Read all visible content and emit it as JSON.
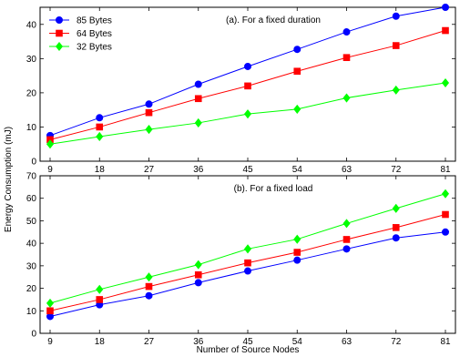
{
  "figure": {
    "shared_ylabel": "Energy Consumption (mJ)",
    "shared_xlabel": "Number of Source Nodes"
  },
  "chart_data": [
    {
      "type": "line",
      "title": "(a). For a fixed duration",
      "xlabel": "",
      "ylabel": "Energy Consumption (mJ)",
      "x": [
        9,
        18,
        27,
        36,
        45,
        54,
        63,
        72,
        81
      ],
      "xlim": [
        9,
        81
      ],
      "ylim": [
        0,
        45
      ],
      "yticks": [
        0,
        10,
        20,
        30,
        40
      ],
      "grid": false,
      "legend_position": "top-left",
      "series": [
        {
          "name": "85 Bytes",
          "color": "#0000ff",
          "marker": "circle",
          "values": [
            7.5,
            12.7,
            16.7,
            22.5,
            27.7,
            32.7,
            37.8,
            42.4,
            45.0
          ]
        },
        {
          "name": "64 Bytes",
          "color": "#ff0000",
          "marker": "square",
          "values": [
            6.3,
            10.0,
            14.2,
            18.3,
            22.0,
            26.3,
            30.3,
            33.8,
            38.2
          ]
        },
        {
          "name": "32 Bytes",
          "color": "#00ff00",
          "marker": "diamond",
          "values": [
            5.0,
            7.2,
            9.3,
            11.2,
            13.8,
            15.2,
            18.5,
            20.8,
            22.9
          ]
        }
      ]
    },
    {
      "type": "line",
      "title": "(b). For a fixed load",
      "xlabel": "Number of Source Nodes",
      "ylabel": "Energy Consumption (mJ)",
      "x": [
        9,
        18,
        27,
        36,
        45,
        54,
        63,
        72,
        81
      ],
      "xlim": [
        9,
        81
      ],
      "ylim": [
        0,
        70
      ],
      "yticks": [
        0,
        10,
        20,
        30,
        40,
        50,
        60,
        70
      ],
      "grid": false,
      "series": [
        {
          "name": "85 Bytes",
          "color": "#0000ff",
          "marker": "circle",
          "values": [
            7.5,
            12.7,
            16.7,
            22.5,
            27.7,
            32.5,
            37.5,
            42.4,
            45.0
          ]
        },
        {
          "name": "64 Bytes",
          "color": "#ff0000",
          "marker": "square",
          "values": [
            10.0,
            15.0,
            20.8,
            26.0,
            31.3,
            36.0,
            41.7,
            47.0,
            52.8
          ]
        },
        {
          "name": "32 Bytes",
          "color": "#00ff00",
          "marker": "diamond",
          "values": [
            13.4,
            19.5,
            25.0,
            30.5,
            37.5,
            41.8,
            48.8,
            55.5,
            62.0
          ]
        }
      ]
    }
  ]
}
